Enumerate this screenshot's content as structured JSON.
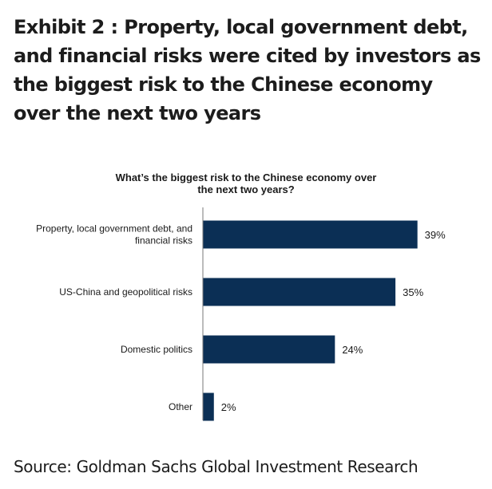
{
  "header": {
    "title": "Exhibit 2 : Property, local government debt, and financial risks were cited by investors as the biggest risk to the Chinese economy over the next two years"
  },
  "footer": {
    "source": "Source: Goldman Sachs Global Investment Research"
  },
  "colors": {
    "bar": "#0b2f55",
    "axis": "#7a7a7a"
  },
  "chart_data": {
    "type": "bar",
    "orientation": "horizontal",
    "title_lines": [
      "What’s the biggest risk to the Chinese economy over",
      "the next two years?"
    ],
    "categories": [
      [
        "Property, local government debt, and",
        "financial risks"
      ],
      [
        "US-China and geopolitical risks"
      ],
      [
        "Domestic politics"
      ],
      [
        "Other"
      ]
    ],
    "values": [
      39,
      35,
      24,
      2
    ],
    "value_labels": [
      "39%",
      "35%",
      "24%",
      "2%"
    ],
    "xlim": [
      0,
      45
    ],
    "grid": false,
    "legend": "none"
  }
}
